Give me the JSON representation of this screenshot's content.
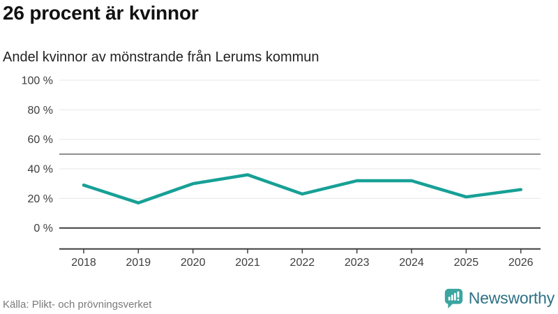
{
  "header": {
    "title": "26 procent är kvinnor",
    "subtitle": "Andel kvinnor av mönstrande från Lerums kommun"
  },
  "chart_data": {
    "type": "line",
    "title": "26 procent är kvinnor",
    "subtitle": "Andel kvinnor av mönstrande från Lerums kommun",
    "x": [
      "2018",
      "2019",
      "2020",
      "2021",
      "2022",
      "2023",
      "2024",
      "2025",
      "2026"
    ],
    "series": [
      {
        "name": "Andel kvinnor av mönstrande",
        "values": [
          29,
          17,
          30,
          36,
          23,
          32,
          32,
          21,
          26
        ]
      }
    ],
    "unit": "%",
    "ylim": [
      0,
      100
    ],
    "y_ticks": [
      {
        "value": 100,
        "label": "100 %"
      },
      {
        "value": 80,
        "label": "80 %"
      },
      {
        "value": 60,
        "label": "60 %"
      },
      {
        "value": 40,
        "label": "40 %"
      },
      {
        "value": 20,
        "label": "20 %"
      },
      {
        "value": 0,
        "label": "0 %"
      }
    ],
    "reference_line": {
      "value": 50,
      "color": "#8c8c8c"
    },
    "grid": true,
    "legend": "none",
    "line_color": "#17a096",
    "grid_color": "#e7e7e7",
    "axis_color": "#3f3f3f",
    "tick_color": "#3d3d3d"
  },
  "footer": {
    "source": "Källa: Plikt- och prövningsverket",
    "logo_text": "Newsworthy",
    "logo_icon": "newsworthy-bar-chart-speech-bubble-icon",
    "logo_text_color": "#2d7185",
    "logo_icon_color": "#3ba5a0"
  }
}
